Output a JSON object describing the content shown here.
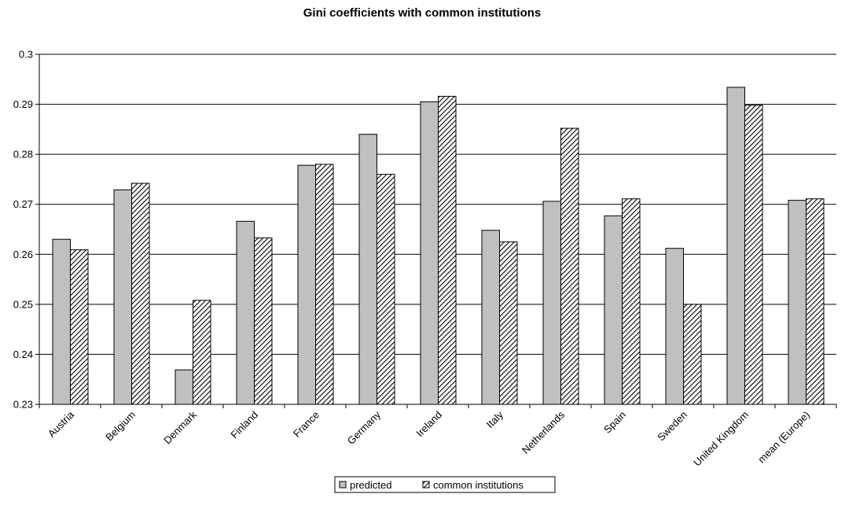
{
  "chart_data": {
    "type": "bar",
    "title": "Gini coefficients with common institutions",
    "xlabel": "",
    "ylabel": "",
    "ylim": [
      0.23,
      0.3
    ],
    "yticks": [
      0.23,
      0.24,
      0.25,
      0.26,
      0.27,
      0.28,
      0.29,
      0.3
    ],
    "ytick_labels": [
      "0.23",
      "0.24",
      "0.25",
      "0.26",
      "0.27",
      "0.28",
      "0.29",
      "0.3"
    ],
    "categories": [
      "Austria",
      "Belgium",
      "Denmark",
      "Finland",
      "France",
      "Germany",
      "Ireland",
      "Italy",
      "Netherlands",
      "Spain",
      "Sweden",
      "United Kingdom",
      "mean (Europe)"
    ],
    "series": [
      {
        "name": "predicted",
        "fill": "#c0c0c0",
        "pattern": "solid",
        "values": [
          0.263,
          0.2729,
          0.2369,
          0.2666,
          0.2778,
          0.284,
          0.2905,
          0.2648,
          0.2706,
          0.2677,
          0.2612,
          0.2934,
          0.2708
        ]
      },
      {
        "name": "common institutions",
        "fill": "#ffffff",
        "pattern": "diagonal-hatch",
        "values": [
          0.2609,
          0.2742,
          0.2508,
          0.2633,
          0.278,
          0.276,
          0.2916,
          0.2625,
          0.2852,
          0.2711,
          0.25,
          0.2898,
          0.2711
        ]
      }
    ],
    "grid": true,
    "legend_position": "bottom"
  }
}
